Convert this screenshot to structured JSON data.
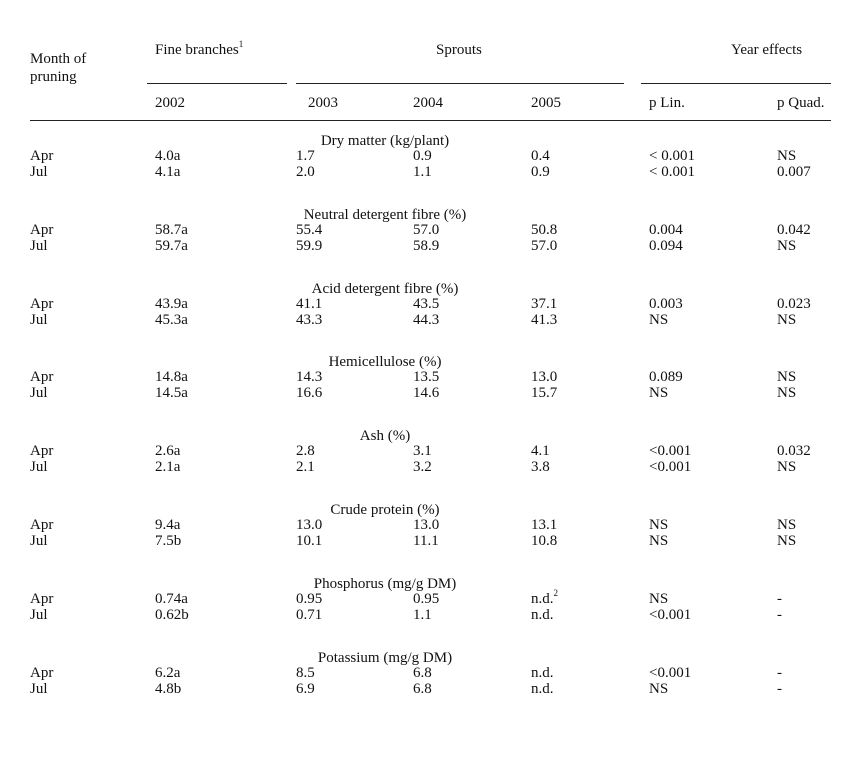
{
  "header": {
    "month_of_pruning_line1": "Month of",
    "month_of_pruning_line2": "pruning",
    "fine_branches": "Fine branches",
    "fine_branches_note": "1",
    "sprouts": "Sprouts",
    "year_effects": "Year effects",
    "col_2002": "2002",
    "col_2003": "2003",
    "col_2004": "2004",
    "col_2005": "2005",
    "p_lin": "p Lin.",
    "p_quad": "p Quad."
  },
  "sections": [
    {
      "title": "Dry matter (kg/plant)",
      "rows": [
        {
          "month": "Apr",
          "fb": "4.0a",
          "y2003": "1.7",
          "y2004": "0.9",
          "y2005": "0.4",
          "plin": "< 0.001",
          "pquad": "NS"
        },
        {
          "month": "Jul",
          "fb": "4.1a",
          "y2003": "2.0",
          "y2004": "1.1",
          "y2005": "0.9",
          "plin": "< 0.001",
          "pquad": "0.007"
        }
      ]
    },
    {
      "title": "Neutral detergent fibre (%)",
      "rows": [
        {
          "month": "Apr",
          "fb": "58.7a",
          "y2003": "55.4",
          "y2004": "57.0",
          "y2005": "50.8",
          "plin": "0.004",
          "pquad": "0.042"
        },
        {
          "month": "Jul",
          "fb": "59.7a",
          "y2003": "59.9",
          "y2004": "58.9",
          "y2005": "57.0",
          "plin": "0.094",
          "pquad": "NS"
        }
      ]
    },
    {
      "title": "Acid detergent fibre (%)",
      "rows": [
        {
          "month": "Apr",
          "fb": "43.9a",
          "y2003": "41.1",
          "y2004": "43.5",
          "y2005": "37.1",
          "plin": "0.003",
          "pquad": "0.023"
        },
        {
          "month": "Jul",
          "fb": "45.3a",
          "y2003": "43.3",
          "y2004": "44.3",
          "y2005": "41.3",
          "plin": "NS",
          "pquad": "NS"
        }
      ]
    },
    {
      "title": "Hemicellulose (%)",
      "rows": [
        {
          "month": "Apr",
          "fb": "14.8a",
          "y2003": "14.3",
          "y2004": "13.5",
          "y2005": "13.0",
          "plin": "0.089",
          "pquad": "NS"
        },
        {
          "month": "Jul",
          "fb": "14.5a",
          "y2003": "16.6",
          "y2004": "14.6",
          "y2005": "15.7",
          "plin": "NS",
          "pquad": "NS"
        }
      ]
    },
    {
      "title": "Ash (%)",
      "rows": [
        {
          "month": "Apr",
          "fb": "2.6a",
          "y2003": "2.8",
          "y2004": "3.1",
          "y2005": "4.1",
          "plin": "<0.001",
          "pquad": "0.032"
        },
        {
          "month": "Jul",
          "fb": "2.1a",
          "y2003": "2.1",
          "y2004": "3.2",
          "y2005": "3.8",
          "plin": "<0.001",
          "pquad": "NS"
        }
      ]
    },
    {
      "title": "Crude protein (%)",
      "rows": [
        {
          "month": "Apr",
          "fb": "9.4a",
          "y2003": "13.0",
          "y2004": "13.0",
          "y2005": "13.1",
          "plin": "NS",
          "pquad": "NS"
        },
        {
          "month": "Jul",
          "fb": "7.5b",
          "y2003": "10.1",
          "y2004": "11.1",
          "y2005": "10.8",
          "plin": "NS",
          "pquad": "NS"
        }
      ]
    },
    {
      "title": "Phosphorus (mg/g DM)",
      "rows": [
        {
          "month": "Apr",
          "fb": "0.74a",
          "y2003": "0.95",
          "y2004": "0.95",
          "y2005": "n.d.",
          "y2005_note": "2",
          "plin": "NS",
          "pquad": "-"
        },
        {
          "month": "Jul",
          "fb": "0.62b",
          "y2003": "0.71",
          "y2004": "1.1",
          "y2005": "n.d.",
          "plin": "<0.001",
          "pquad": "-"
        }
      ]
    },
    {
      "title": "Potassium (mg/g DM)",
      "rows": [
        {
          "month": "Apr",
          "fb": "6.2a",
          "y2003": "8.5",
          "y2004": "6.8",
          "y2005": "n.d.",
          "plin": "<0.001",
          "pquad": "-"
        },
        {
          "month": "Jul",
          "fb": "4.8b",
          "y2003": "6.9",
          "y2004": "6.8",
          "y2005": "n.d.",
          "plin": "NS",
          "pquad": "-"
        }
      ]
    }
  ]
}
